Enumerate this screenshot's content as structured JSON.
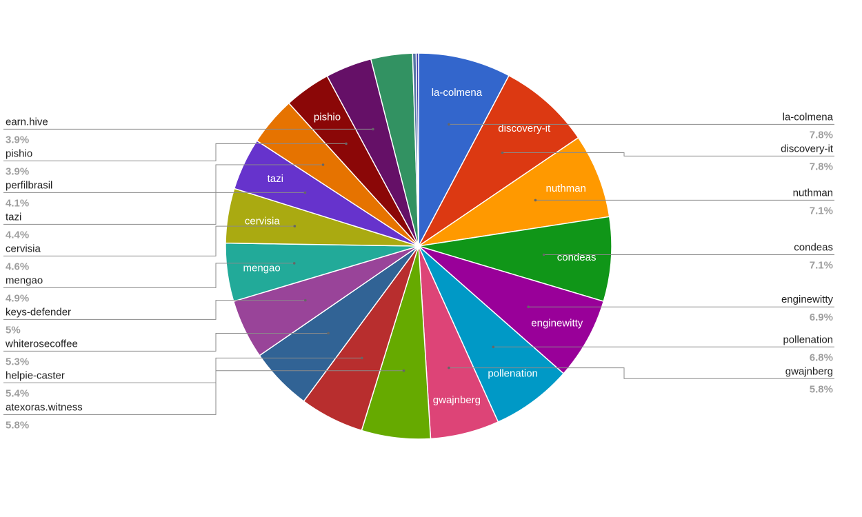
{
  "chart_data": {
    "type": "pie",
    "slices": [
      {
        "label": "la-colmena",
        "percent_label": "7.8%",
        "value": 7.8,
        "color": "#3366cc"
      },
      {
        "label": "discovery-it",
        "percent_label": "7.8%",
        "value": 7.8,
        "color": "#dc3912"
      },
      {
        "label": "nuthman",
        "percent_label": "7.1%",
        "value": 7.1,
        "color": "#ff9900"
      },
      {
        "label": "condeas",
        "percent_label": "7.1%",
        "value": 7.1,
        "color": "#109618"
      },
      {
        "label": "enginewitty",
        "percent_label": "6.9%",
        "value": 6.9,
        "color": "#990099"
      },
      {
        "label": "pollenation",
        "percent_label": "6.8%",
        "value": 6.8,
        "color": "#0099c6"
      },
      {
        "label": "gwajnberg",
        "percent_label": "5.8%",
        "value": 5.8,
        "color": "#dd4477"
      },
      {
        "label": "atexoras.witness",
        "percent_label": "5.8%",
        "value": 5.8,
        "color": "#66aa00"
      },
      {
        "label": "helpie-caster",
        "percent_label": "5.4%",
        "value": 5.4,
        "color": "#b82e2e"
      },
      {
        "label": "whiterosecoffee",
        "percent_label": "5.3%",
        "value": 5.3,
        "color": "#316395"
      },
      {
        "label": "keys-defender",
        "percent_label": "5%",
        "value": 5.0,
        "color": "#994499"
      },
      {
        "label": "mengao",
        "percent_label": "4.9%",
        "value": 4.9,
        "color": "#22aa99"
      },
      {
        "label": "cervisia",
        "percent_label": "4.6%",
        "value": 4.6,
        "color": "#aaaa11"
      },
      {
        "label": "tazi",
        "percent_label": "4.4%",
        "value": 4.4,
        "color": "#6633cc"
      },
      {
        "label": "perfilbrasil",
        "percent_label": "4.1%",
        "value": 4.1,
        "color": "#e67300"
      },
      {
        "label": "pishio",
        "percent_label": "3.9%",
        "value": 3.9,
        "color": "#8b0707"
      },
      {
        "label": "earn.hive",
        "percent_label": "3.9%",
        "value": 3.9,
        "color": "#651067"
      },
      {
        "label": "",
        "value": 3.5,
        "color": "#329262"
      },
      {
        "label": "",
        "value": 0.3,
        "color": "#5574a6"
      },
      {
        "label": "",
        "value": 0.2,
        "color": "#3b3eac"
      }
    ],
    "in_slice_labels": [
      "la-colmena",
      "discovery-it",
      "nuthman",
      "condeas",
      "enginewitty",
      "pollenation",
      "gwajnberg",
      "mengao",
      "cervisia",
      "tazi",
      "pishio"
    ],
    "legend_placement": "labeled leader lines on left and right"
  }
}
